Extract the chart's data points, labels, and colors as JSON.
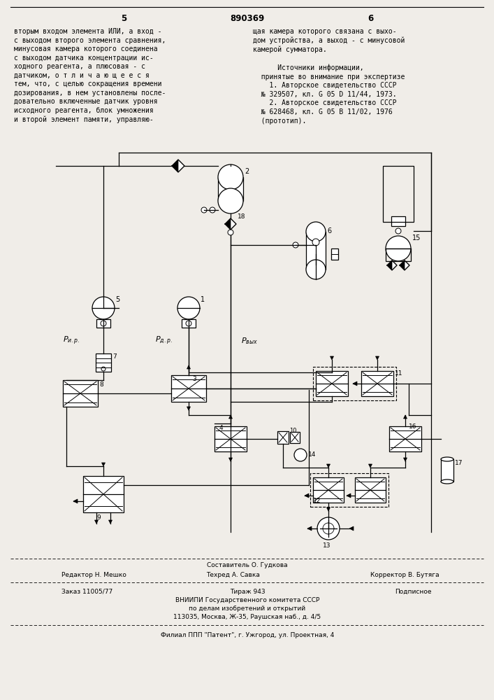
{
  "page_width": 7.07,
  "page_height": 10.0,
  "bg_color": "#f0ede8",
  "top_text_left": "вторым входом элемента ИЛИ, а вход -\nс выходом второго элемента сравнения,\nминусовая камера которого соединена\nс выходом датчика концентрации ис-\nходного реагента, а плюсовая - с\nдатчиком, о т л и ч а ю щ е е с я\nтем, что, с целью сокращения времени\nдозирования, в нем установлены после-\nдовательно включенные датчик уровня\nисходного реагента, блок умножения\nи второй элемент памяти, управляю-",
  "top_text_right": "щая камера которого связана с выхо-\nдом устройства, а выход - с минусовой\nкамерой сумматора.\n\n      Источники информации,\n  принятые во внимание при экспертизе\n    1. Авторское свидетельство СССР\n  № 329507, кл. G 05 D 11/44, 1973.\n    2. Авторское свидетельство СССР\n  № 628468, кл. G 05 В 11/02, 1976\n  (прототип).",
  "page_num_left": "5",
  "page_num_center": "890369",
  "page_num_right": "6",
  "bottom_composer": "Составитель О. Гудкова",
  "bottom_editor": "Редактор Н. Мешко",
  "bottom_techred": "Техред А. Савка",
  "bottom_corrector": "Корректор В. Бутяга",
  "bottom_order": "Заказ 11005/77",
  "bottom_tirazh": "Тираж 943",
  "bottom_podpisnoe": "Подписное",
  "bottom_vniip1": "ВНИИПИ Государственного комитета СССР",
  "bottom_vniip2": "по делам изобретений и открытий",
  "bottom_vniip3": "113035, Москва, Ж-35, Раушская наб., д. 4/5",
  "bottom_filial": "Филиал ППП \"Патент\", г. Ужгород, ул. Проектная, 4",
  "text_fontsize": 7.0,
  "small_fontsize": 6.5
}
